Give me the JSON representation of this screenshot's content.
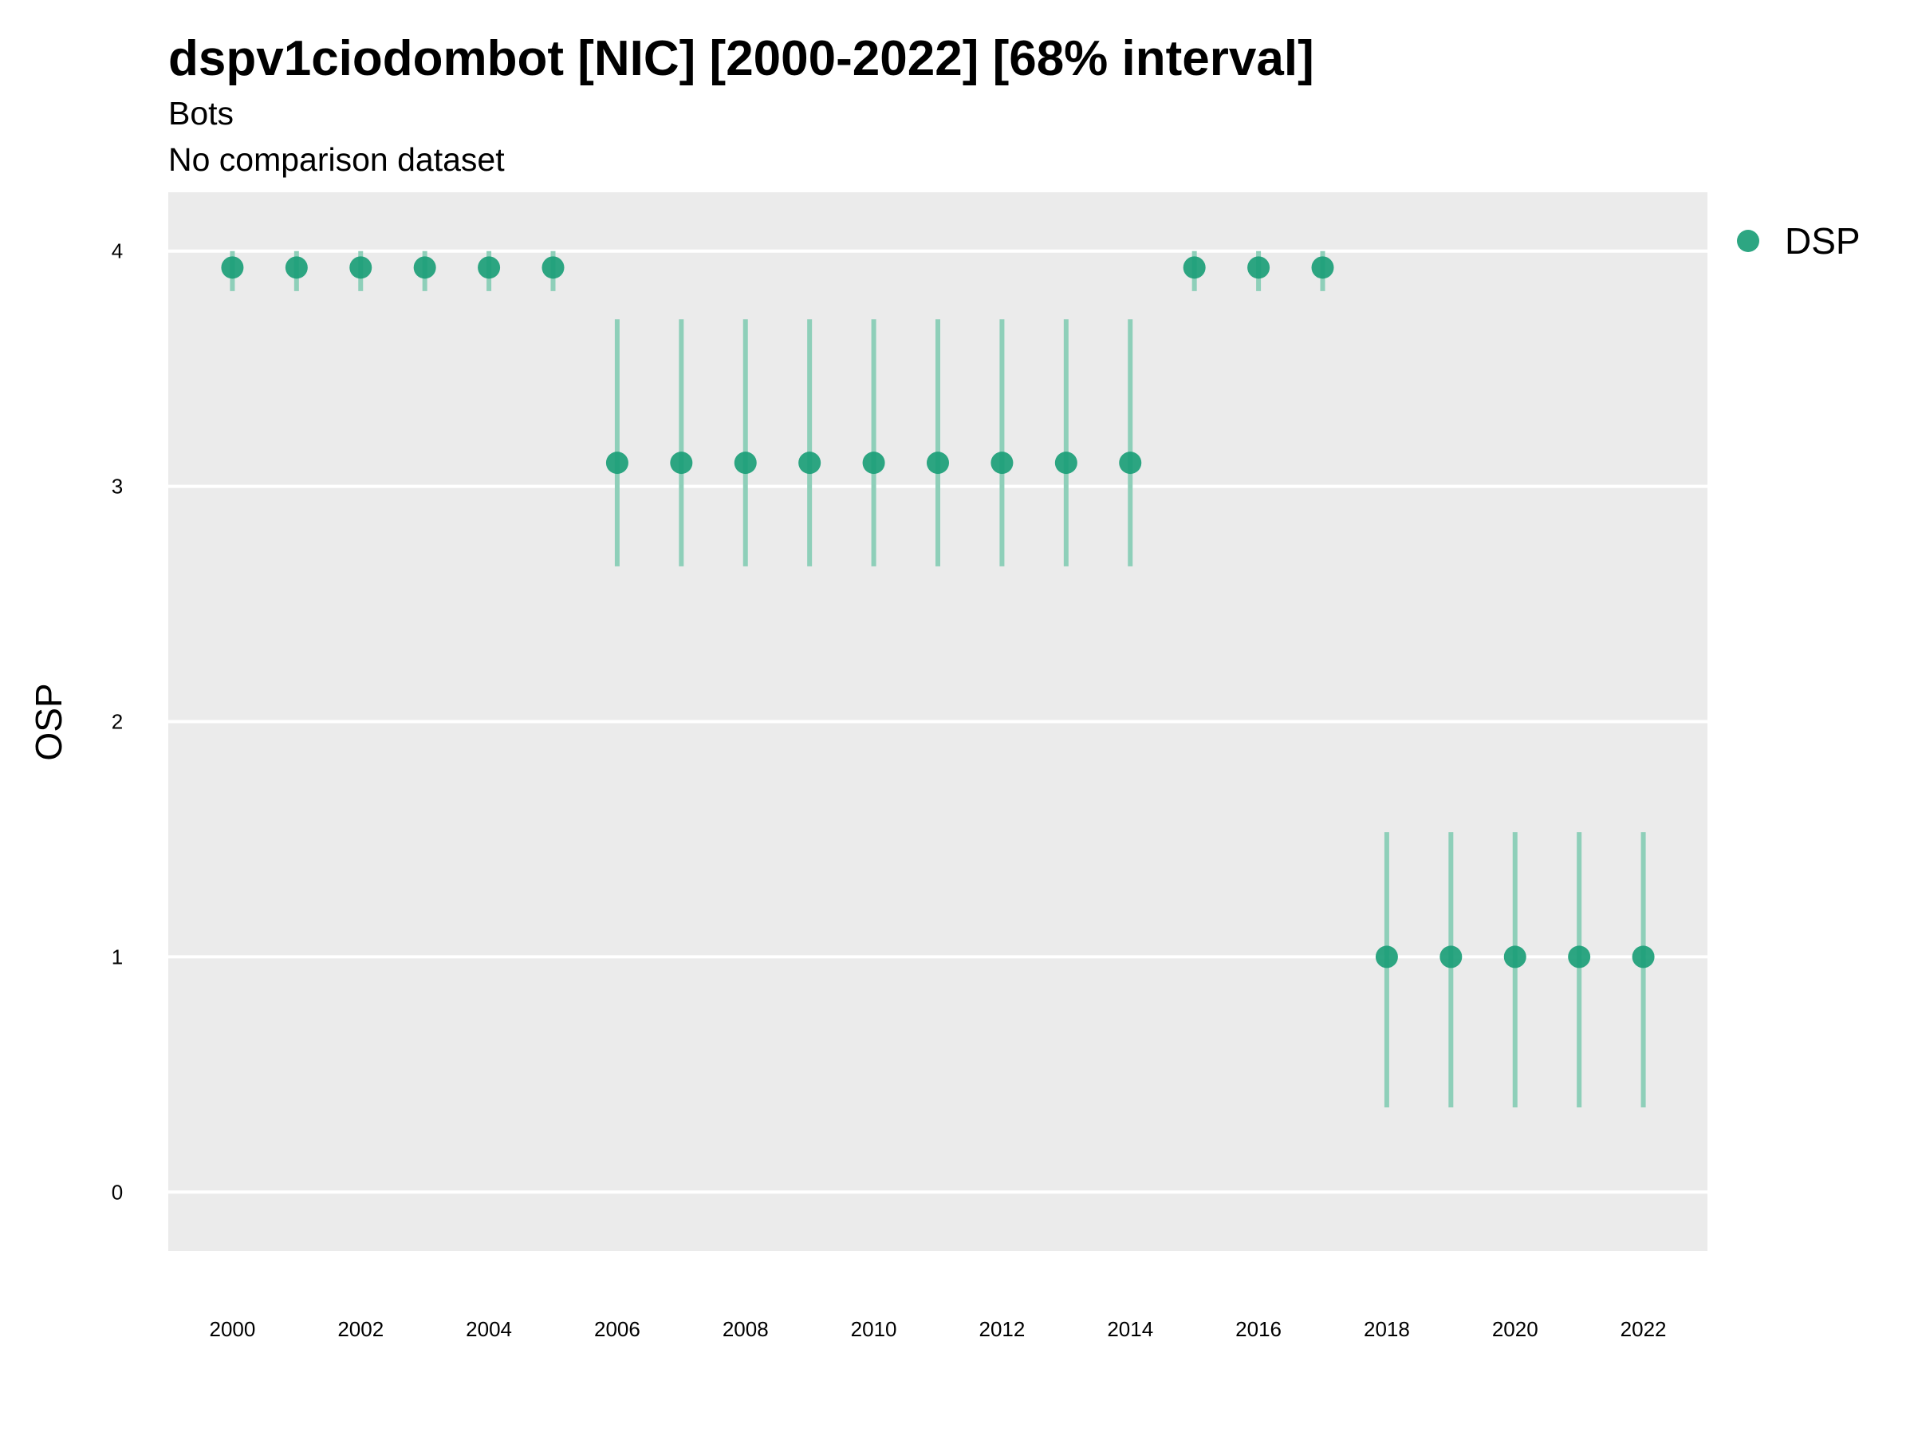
{
  "chart_data": {
    "type": "scatter",
    "title": "dspv1ciodombot [NIC] [2000-2022] [68% interval]",
    "subtitles": [
      "Bots",
      "No comparison dataset"
    ],
    "xlabel": "",
    "ylabel": "OSP",
    "x_ticks": [
      "2000",
      "2002",
      "2004",
      "2006",
      "2008",
      "2010",
      "2012",
      "2014",
      "2016",
      "2018",
      "2020",
      "2022"
    ],
    "y_ticks": [
      "0",
      "1",
      "2",
      "3",
      "4"
    ],
    "xlim": [
      1999,
      2023
    ],
    "ylim": [
      -0.25,
      4.25
    ],
    "grid": true,
    "legend_position": "right",
    "colors": {
      "panel": "#ebebeb",
      "grid": "#ffffff",
      "point": "#1b9e77",
      "interval": "#8ecfb9"
    },
    "series": [
      {
        "name": "DSP",
        "x": [
          2000,
          2001,
          2002,
          2003,
          2004,
          2005,
          2006,
          2007,
          2008,
          2009,
          2010,
          2011,
          2012,
          2013,
          2014,
          2015,
          2016,
          2017,
          2018,
          2019,
          2020,
          2021,
          2022
        ],
        "y": [
          3.93,
          3.93,
          3.93,
          3.93,
          3.93,
          3.93,
          3.1,
          3.1,
          3.1,
          3.1,
          3.1,
          3.1,
          3.1,
          3.1,
          3.1,
          3.93,
          3.93,
          3.93,
          1.0,
          1.0,
          1.0,
          1.0,
          1.0
        ],
        "lower": [
          3.83,
          3.83,
          3.83,
          3.83,
          3.83,
          3.83,
          2.66,
          2.66,
          2.66,
          2.66,
          2.66,
          2.66,
          2.66,
          2.66,
          2.66,
          3.83,
          3.83,
          3.83,
          0.36,
          0.36,
          0.36,
          0.36,
          0.36
        ],
        "upper": [
          4.0,
          4.0,
          4.0,
          4.0,
          4.0,
          4.0,
          3.71,
          3.71,
          3.71,
          3.71,
          3.71,
          3.71,
          3.71,
          3.71,
          3.71,
          4.0,
          4.0,
          4.0,
          1.53,
          1.53,
          1.53,
          1.53,
          1.53
        ]
      }
    ]
  }
}
